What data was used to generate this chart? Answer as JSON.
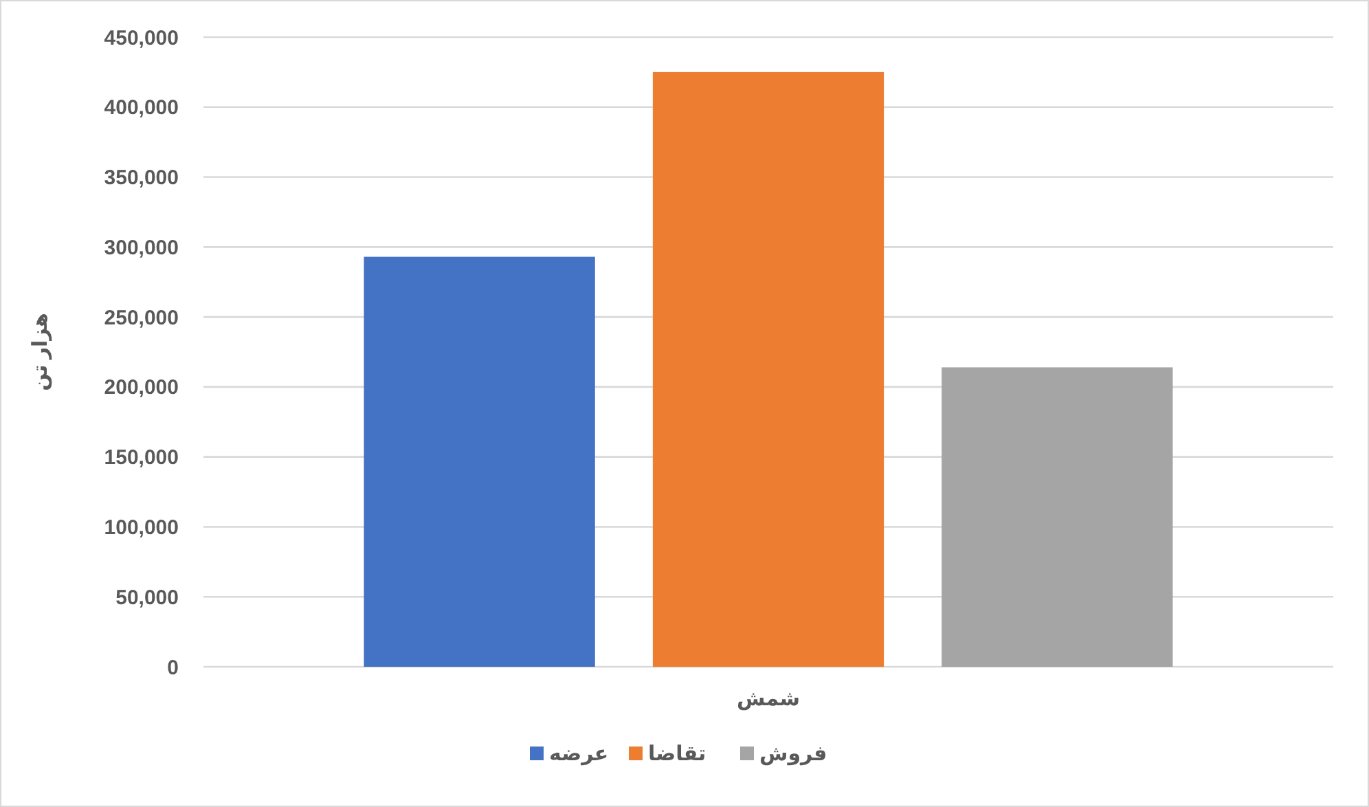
{
  "chart_data": {
    "type": "bar",
    "ylabel": "هزار تن",
    "categories": [
      "شمش"
    ],
    "series": [
      {
        "name": "عرضه",
        "color": "#4472c4",
        "values": [
          293000
        ]
      },
      {
        "name": "تقاضا",
        "color": "#ed7d31",
        "values": [
          425000
        ]
      },
      {
        "name": "فروش",
        "color": "#a5a5a5",
        "values": [
          214000
        ]
      }
    ],
    "ylim": [
      0,
      450000
    ],
    "yticks": [
      {
        "value": 0,
        "label": "0"
      },
      {
        "value": 50000,
        "label": "50,000"
      },
      {
        "value": 100000,
        "label": "100,000"
      },
      {
        "value": 150000,
        "label": "150,000"
      },
      {
        "value": 200000,
        "label": "200,000"
      },
      {
        "value": 250000,
        "label": "250,000"
      },
      {
        "value": 300000,
        "label": "300,000"
      },
      {
        "value": 350000,
        "label": "350,000"
      },
      {
        "value": 400000,
        "label": "400,000"
      },
      {
        "value": 450000,
        "label": "450,000"
      }
    ],
    "grid": "y",
    "legend": "bottom"
  }
}
